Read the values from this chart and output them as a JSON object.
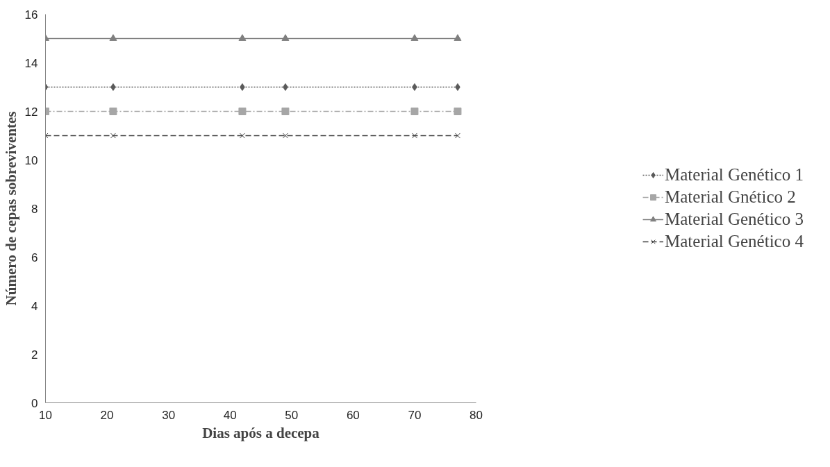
{
  "chart_data": {
    "type": "line",
    "xlabel": "Dias após a decepa",
    "ylabel": "Número de cepas sobreviventes",
    "x": [
      10,
      21,
      42,
      49,
      70,
      77
    ],
    "xlim": [
      10,
      80
    ],
    "xticks": [
      10,
      20,
      30,
      40,
      50,
      60,
      70,
      80
    ],
    "ylim": [
      0,
      16
    ],
    "yticks": [
      0,
      2,
      4,
      6,
      8,
      10,
      12,
      14,
      16
    ],
    "grid": false,
    "legend": "right",
    "series": [
      {
        "name": "Material Genético 1",
        "color": "#5a5a5a",
        "values": [
          13,
          13,
          13,
          13,
          13,
          13
        ],
        "marker": "diamond",
        "line_style": "dotted"
      },
      {
        "name": "Material Gnético 2",
        "color": "#a6a6a6",
        "values": [
          12,
          12,
          12,
          12,
          12,
          12
        ],
        "marker": "square",
        "line_style": "dashdot"
      },
      {
        "name": "Material Genético 3",
        "color": "#7f7f7f",
        "values": [
          15,
          15,
          15,
          15,
          15,
          15
        ],
        "marker": "triangle",
        "line_style": "solid"
      },
      {
        "name": "Material Genético 4",
        "color": "#404040",
        "values": [
          11,
          11,
          11,
          11,
          11,
          11
        ],
        "marker": "cross",
        "line_style": "dashed"
      }
    ]
  }
}
